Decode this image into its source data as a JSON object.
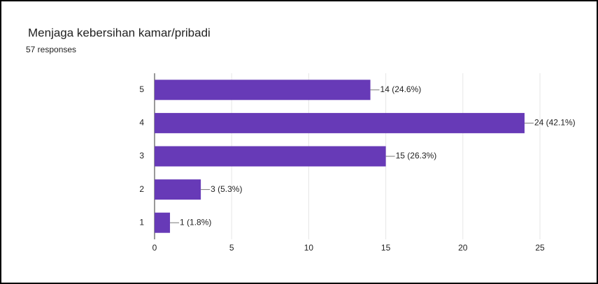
{
  "chart_data": {
    "type": "bar",
    "orientation": "horizontal",
    "title": "Menjaga kebersihan kamar/pribadi",
    "subtitle": "57 responses",
    "categories": [
      "5",
      "4",
      "3",
      "2",
      "1"
    ],
    "values": [
      14,
      24,
      15,
      3,
      1
    ],
    "value_labels": [
      "14 (24.6%)",
      "24 (42.1%)",
      "15 (26.3%)",
      "3 (5.3%)",
      "1 (1.8%)"
    ],
    "color": "#673ab7",
    "xlim": [
      0,
      25
    ],
    "xticks": [
      0,
      5,
      10,
      15,
      20,
      25
    ],
    "grid": true
  }
}
